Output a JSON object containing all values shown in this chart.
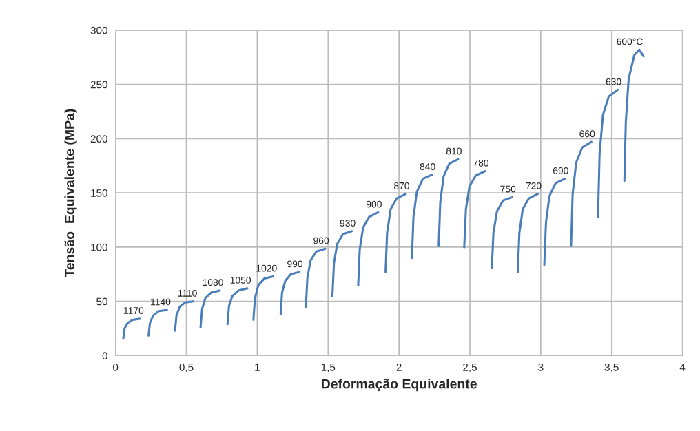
{
  "chart_data": {
    "type": "line",
    "xlabel": "Deformação Equivalente",
    "ylabel": "Tensão  Equivalente (MPa)",
    "xlim": [
      0,
      4
    ],
    "ylim": [
      0,
      300
    ],
    "xticks": [
      0,
      {
        "value": 0.5,
        "label": "0,5"
      },
      1,
      {
        "value": 1.5,
        "label": "1,5"
      },
      2,
      {
        "value": 2.5,
        "label": "2,5"
      },
      3,
      {
        "value": 3.5,
        "label": "3,5"
      },
      4
    ],
    "yticks": [
      0,
      50,
      100,
      150,
      200,
      250,
      300
    ],
    "grid": true,
    "legend": false,
    "marker": "none",
    "line_style": "solid",
    "series": [
      {
        "name": "1170",
        "color": "#4a7ebb",
        "x": [
          0.055,
          0.064,
          0.085,
          0.12,
          0.173
        ],
        "values": [
          15.7,
          25,
          30,
          33,
          34
        ]
      },
      {
        "name": "1140",
        "color": "#4a7ebb",
        "x": [
          0.233,
          0.243,
          0.266,
          0.305,
          0.363
        ],
        "values": [
          18.5,
          30,
          37,
          41,
          42
        ]
      },
      {
        "name": "1110",
        "color": "#4a7ebb",
        "x": [
          0.42,
          0.43,
          0.453,
          0.492,
          0.55
        ],
        "values": [
          23,
          37,
          45,
          49,
          50
        ]
      },
      {
        "name": "1080",
        "color": "#4a7ebb",
        "x": [
          0.6,
          0.611,
          0.634,
          0.674,
          0.735
        ],
        "values": [
          26,
          43,
          53,
          58,
          60
        ]
      },
      {
        "name": "1050",
        "color": "#4a7ebb",
        "x": [
          0.79,
          0.801,
          0.825,
          0.867,
          0.93
        ],
        "values": [
          29,
          46,
          55,
          60,
          62
        ]
      },
      {
        "name": "1020",
        "color": "#4a7ebb",
        "x": [
          0.973,
          0.984,
          1.008,
          1.05,
          1.113
        ],
        "values": [
          33,
          53,
          65,
          71,
          73
        ]
      },
      {
        "name": "990",
        "color": "#4a7ebb",
        "x": [
          1.165,
          1.175,
          1.198,
          1.237,
          1.295
        ],
        "values": [
          38,
          58,
          69,
          75,
          77
        ]
      },
      {
        "name": "960",
        "color": "#4a7ebb",
        "x": [
          1.343,
          1.354,
          1.377,
          1.418,
          1.48
        ],
        "values": [
          45,
          72,
          88,
          96,
          98.5
        ]
      },
      {
        "name": "930",
        "color": "#4a7ebb",
        "x": [
          1.53,
          1.541,
          1.564,
          1.605,
          1.667
        ],
        "values": [
          54.6,
          85,
          103,
          112,
          114.6
        ]
      },
      {
        "name": "900",
        "color": "#4a7ebb",
        "x": [
          1.712,
          1.723,
          1.747,
          1.79,
          1.853
        ],
        "values": [
          64.5,
          98,
          118,
          128,
          132
        ]
      },
      {
        "name": "870",
        "color": "#4a7ebb",
        "x": [
          1.905,
          1.916,
          1.941,
          1.984,
          2.048
        ],
        "values": [
          77,
          113,
          135,
          145,
          149
        ]
      },
      {
        "name": "840",
        "color": "#4a7ebb",
        "x": [
          2.091,
          2.102,
          2.126,
          2.168,
          2.231
        ],
        "values": [
          90,
          128,
          151,
          163,
          166.7
        ]
      },
      {
        "name": "810",
        "color": "#4a7ebb",
        "x": [
          2.28,
          2.291,
          2.314,
          2.355,
          2.417
        ],
        "values": [
          101,
          141,
          165,
          177,
          181
        ]
      },
      {
        "name": "780",
        "color": "#4a7ebb",
        "x": [
          2.46,
          2.472,
          2.497,
          2.541,
          2.607
        ],
        "values": [
          99.8,
          135,
          156,
          166,
          170
        ]
      },
      {
        "name": "750",
        "color": "#4a7ebb",
        "x": [
          2.655,
          2.666,
          2.691,
          2.734,
          2.798
        ],
        "values": [
          81,
          113,
          133,
          143,
          146
        ]
      },
      {
        "name": "720",
        "color": "#4a7ebb",
        "x": [
          2.838,
          2.849,
          2.873,
          2.916,
          2.979
        ],
        "values": [
          77,
          113,
          135,
          145,
          149
        ]
      },
      {
        "name": "690",
        "color": "#4a7ebb",
        "x": [
          3.025,
          3.037,
          3.061,
          3.105,
          3.17
        ],
        "values": [
          83.6,
          123,
          147,
          159,
          163
        ]
      },
      {
        "name": "660",
        "color": "#4a7ebb",
        "x": [
          3.214,
          3.225,
          3.25,
          3.293,
          3.357
        ],
        "values": [
          101,
          149,
          178,
          192,
          197
        ]
      },
      {
        "name": "630",
        "color": "#4a7ebb",
        "x": [
          3.404,
          3.415,
          3.439,
          3.48,
          3.543
        ],
        "values": [
          128,
          186,
          222,
          239,
          245
        ]
      },
      {
        "name": "600°C",
        "color": "#4a7ebb",
        "x": [
          3.59,
          3.6,
          3.62,
          3.66,
          3.695,
          3.725
        ],
        "values": [
          161,
          215,
          255,
          277,
          282,
          276
        ]
      }
    ]
  }
}
